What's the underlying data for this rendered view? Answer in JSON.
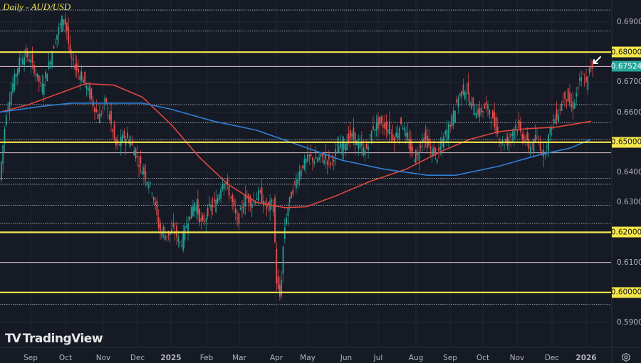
{
  "header": {
    "title": "Daily - AUD/USD"
  },
  "branding": {
    "logo_mark": "TV",
    "logo_text": "TradingView"
  },
  "colors": {
    "background": "#161a25",
    "grid": "#232734",
    "bull": "#26a69a",
    "bear": "#ef5350",
    "ma_fast": "#e0463f",
    "ma_slow": "#2f7fd6",
    "support_resistance": "#f7e84a",
    "current_price_line": "#e6c7cf",
    "dotted_levels": "#c8ccd6",
    "axis_text": "#b2b5be"
  },
  "price_axis": {
    "labels": [
      "0.69000",
      "0.67000",
      "0.66000",
      "0.64000",
      "0.63000",
      "0.61000",
      "0.59000"
    ],
    "tagged": [
      {
        "label": "0.68000",
        "value": 0.68,
        "type": "yellow"
      },
      {
        "label": "0.67524",
        "value": 0.67524,
        "type": "current"
      },
      {
        "label": "0.65000",
        "value": 0.65,
        "type": "yellow"
      },
      {
        "label": "0.62000",
        "value": 0.62,
        "type": "yellow"
      },
      {
        "label": "0.60000",
        "value": 0.6,
        "type": "yellow"
      }
    ]
  },
  "time_axis": {
    "labels": [
      "Sep",
      "Oct",
      "Nov",
      "Dec",
      "2025",
      "Feb",
      "Mar",
      "Apr",
      "May",
      "Jun",
      "Jul",
      "Aug",
      "Sep",
      "Oct",
      "Nov",
      "Dec",
      "2026"
    ]
  },
  "settings_icon": "gear-icon",
  "chart_data": {
    "type": "candlestick",
    "title": "Daily - AUD/USD",
    "xlabel": "",
    "ylabel": "",
    "ylim": [
      0.5867,
      0.6968
    ],
    "grid": true,
    "current_price": 0.67524,
    "x_tick_labels": [
      "Sep",
      "Oct",
      "Nov",
      "Dec",
      "2025",
      "Feb",
      "Mar",
      "Apr",
      "May",
      "Jun",
      "Jul",
      "Aug",
      "Sep",
      "Oct",
      "Nov",
      "Dec",
      "2026"
    ],
    "y_tick_labels": [
      "0.59000",
      "0.60000",
      "0.61000",
      "0.62000",
      "0.63000",
      "0.64000",
      "0.65000",
      "0.66000",
      "0.67000",
      "0.68000",
      "0.69000"
    ],
    "horizontal_levels": {
      "yellow_support_resistance": [
        0.68,
        0.65,
        0.62,
        0.6
      ],
      "solid_light": [
        0.6752,
        0.6465,
        0.61
      ],
      "dotted": [
        0.687,
        0.694,
        0.6625,
        0.6565,
        0.651,
        0.638,
        0.636,
        0.629,
        0.623,
        0.596
      ]
    },
    "series": [
      {
        "name": "Moving average (fast, red)",
        "points": [
          [
            0,
            0.66
          ],
          [
            40,
            0.6625
          ],
          [
            80,
            0.666
          ],
          [
            120,
            0.6695
          ],
          [
            160,
            0.669
          ],
          [
            200,
            0.665
          ],
          [
            240,
            0.656
          ],
          [
            280,
            0.645
          ],
          [
            320,
            0.636
          ],
          [
            360,
            0.63
          ],
          [
            400,
            0.6282
          ],
          [
            430,
            0.6285
          ],
          [
            470,
            0.632
          ],
          [
            520,
            0.637
          ],
          [
            570,
            0.641
          ],
          [
            620,
            0.647
          ],
          [
            660,
            0.651
          ],
          [
            700,
            0.6535
          ],
          [
            740,
            0.6545
          ],
          [
            780,
            0.655
          ],
          [
            830,
            0.657
          ]
        ]
      },
      {
        "name": "Moving average (slow, blue)",
        "points": [
          [
            0,
            0.66
          ],
          [
            60,
            0.662
          ],
          [
            100,
            0.663
          ],
          [
            200,
            0.663
          ],
          [
            240,
            0.661
          ],
          [
            300,
            0.657
          ],
          [
            360,
            0.654
          ],
          [
            420,
            0.649
          ],
          [
            480,
            0.644
          ],
          [
            540,
            0.641
          ],
          [
            600,
            0.639
          ],
          [
            640,
            0.639
          ],
          [
            700,
            0.642
          ],
          [
            760,
            0.646
          ],
          [
            800,
            0.648
          ],
          [
            830,
            0.651
          ]
        ]
      }
    ],
    "price_path": [
      [
        0,
        0.635
      ],
      [
        10,
        0.66
      ],
      [
        20,
        0.67
      ],
      [
        30,
        0.678
      ],
      [
        40,
        0.679
      ],
      [
        50,
        0.674
      ],
      [
        60,
        0.668
      ],
      [
        70,
        0.676
      ],
      [
        80,
        0.685
      ],
      [
        90,
        0.692
      ],
      [
        95,
        0.688
      ],
      [
        100,
        0.678
      ],
      [
        110,
        0.674
      ],
      [
        120,
        0.67
      ],
      [
        130,
        0.664
      ],
      [
        140,
        0.658
      ],
      [
        150,
        0.664
      ],
      [
        155,
        0.658
      ],
      [
        165,
        0.648
      ],
      [
        175,
        0.652
      ],
      [
        185,
        0.65
      ],
      [
        195,
        0.644
      ],
      [
        205,
        0.639
      ],
      [
        215,
        0.634
      ],
      [
        225,
        0.621
      ],
      [
        235,
        0.619
      ],
      [
        245,
        0.621
      ],
      [
        255,
        0.616
      ],
      [
        265,
        0.624
      ],
      [
        275,
        0.63
      ],
      [
        285,
        0.622
      ],
      [
        295,
        0.628
      ],
      [
        305,
        0.63
      ],
      [
        315,
        0.638
      ],
      [
        325,
        0.632
      ],
      [
        335,
        0.623
      ],
      [
        345,
        0.632
      ],
      [
        355,
        0.63
      ],
      [
        365,
        0.633
      ],
      [
        375,
        0.628
      ],
      [
        385,
        0.63
      ],
      [
        390,
        0.602
      ],
      [
        395,
        0.598
      ],
      [
        400,
        0.62
      ],
      [
        405,
        0.628
      ],
      [
        415,
        0.636
      ],
      [
        425,
        0.642
      ],
      [
        435,
        0.645
      ],
      [
        445,
        0.644
      ],
      [
        455,
        0.645
      ],
      [
        465,
        0.643
      ],
      [
        475,
        0.648
      ],
      [
        485,
        0.65
      ],
      [
        495,
        0.652
      ],
      [
        505,
        0.649
      ],
      [
        515,
        0.647
      ],
      [
        525,
        0.655
      ],
      [
        535,
        0.656
      ],
      [
        545,
        0.655
      ],
      [
        555,
        0.651
      ],
      [
        565,
        0.657
      ],
      [
        575,
        0.649
      ],
      [
        585,
        0.644
      ],
      [
        595,
        0.652
      ],
      [
        605,
        0.648
      ],
      [
        615,
        0.645
      ],
      [
        625,
        0.652
      ],
      [
        635,
        0.657
      ],
      [
        645,
        0.665
      ],
      [
        655,
        0.668
      ],
      [
        665,
        0.661
      ],
      [
        675,
        0.66
      ],
      [
        685,
        0.662
      ],
      [
        695,
        0.656
      ],
      [
        705,
        0.65
      ],
      [
        715,
        0.65
      ],
      [
        725,
        0.656
      ],
      [
        735,
        0.652
      ],
      [
        745,
        0.648
      ],
      [
        755,
        0.651
      ],
      [
        765,
        0.646
      ],
      [
        775,
        0.655
      ],
      [
        785,
        0.66
      ],
      [
        795,
        0.666
      ],
      [
        805,
        0.661
      ],
      [
        815,
        0.67
      ],
      [
        820,
        0.672
      ],
      [
        825,
        0.669
      ],
      [
        830,
        0.6752
      ]
    ]
  }
}
